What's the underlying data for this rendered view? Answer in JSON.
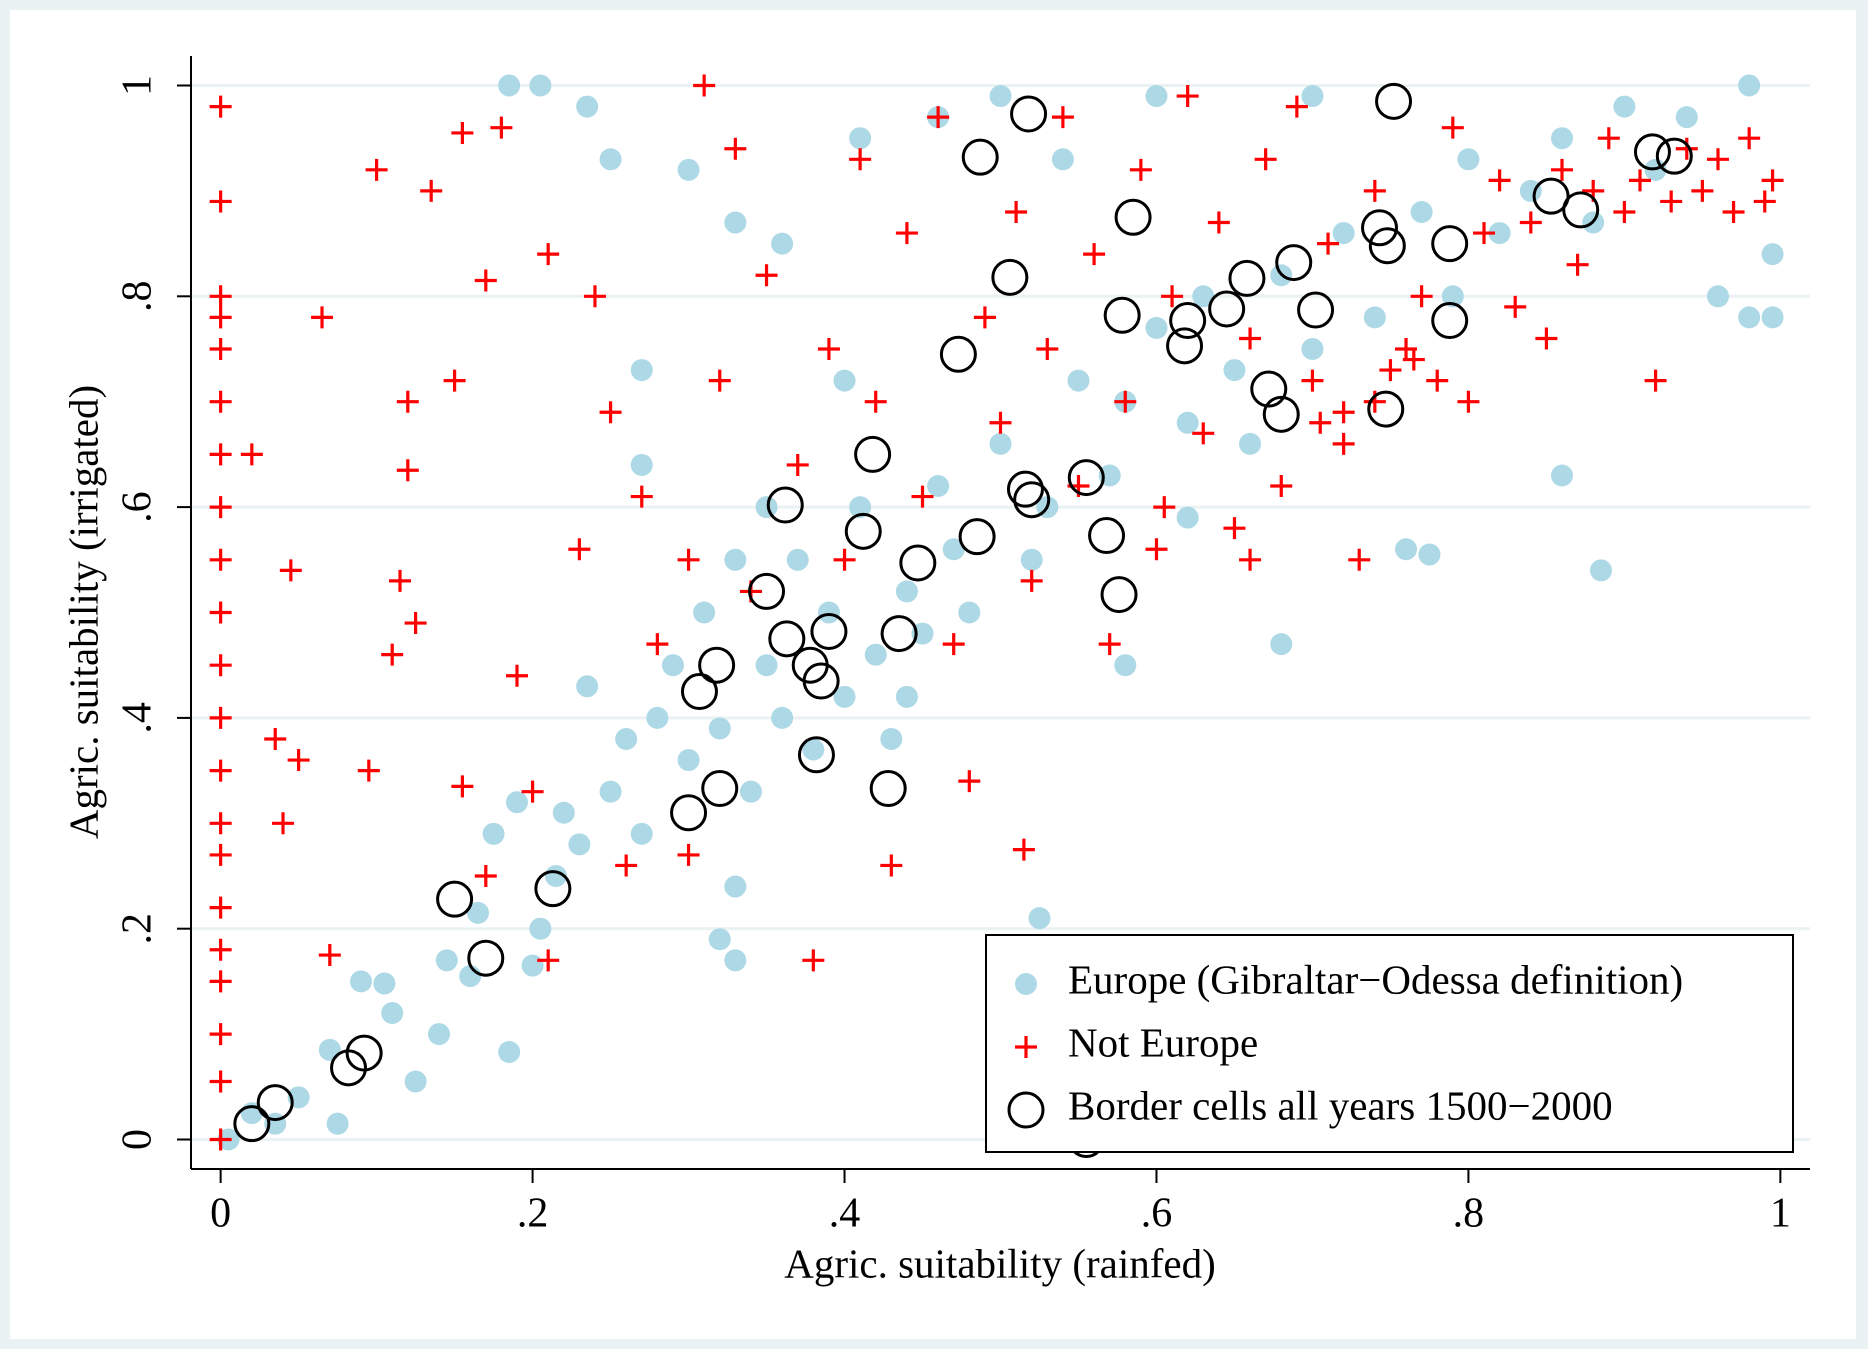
{
  "chart_data": {
    "type": "scatter",
    "x_label": "Agric. suitability (rainfed)",
    "y_label": "Agric. suitability (irrigated)",
    "xlim": [
      -0.019,
      1.019
    ],
    "ylim": [
      -0.028,
      1.028
    ],
    "xticks": [
      0,
      {
        "value": 0.2,
        "label": ".2"
      },
      {
        "value": 0.4,
        "label": ".4"
      },
      {
        "value": 0.6,
        "label": ".6"
      },
      {
        "value": 0.8,
        "label": ".8"
      },
      1
    ],
    "yticks": [
      0,
      {
        "value": 0.2,
        "label": ".2"
      },
      {
        "value": 0.4,
        "label": ".4"
      },
      {
        "value": 0.6,
        "label": ".6"
      },
      {
        "value": 0.8,
        "label": ".8"
      },
      1
    ],
    "grid": true,
    "legend_position": "lower right",
    "series": [
      {
        "name": "Europe (Gibraltar−Odessa definition)",
        "color": "#add8e6",
        "marker": "circle",
        "x": [
          0.005,
          0.02,
          0.035,
          0.05,
          0.075,
          0.07,
          0.09,
          0.11,
          0.105,
          0.125,
          0.14,
          0.145,
          0.16,
          0.165,
          0.175,
          0.185,
          0.19,
          0.2,
          0.205,
          0.215,
          0.22,
          0.23,
          0.235,
          0.25,
          0.26,
          0.27,
          0.28,
          0.29,
          0.3,
          0.31,
          0.32,
          0.33,
          0.33,
          0.34,
          0.35,
          0.36,
          0.37,
          0.38,
          0.39,
          0.4,
          0.41,
          0.42,
          0.43,
          0.44,
          0.45,
          0.46,
          0.47,
          0.48,
          0.5,
          0.52,
          0.53,
          0.55,
          0.57,
          0.58,
          0.6,
          0.62,
          0.63,
          0.65,
          0.66,
          0.68,
          0.7,
          0.72,
          0.74,
          0.76,
          0.77,
          0.79,
          0.8,
          0.82,
          0.84,
          0.86,
          0.88,
          0.9,
          0.92,
          0.94,
          0.96,
          0.98,
          0.995,
          0.185,
          0.205,
          0.235,
          0.3,
          0.33,
          0.41,
          0.46,
          0.5,
          0.54,
          0.6,
          0.7,
          0.775,
          0.86,
          0.885,
          0.98,
          0.995,
          0.525,
          0.68,
          0.62,
          0.27,
          0.36,
          0.25,
          0.4,
          0.58,
          0.44,
          0.35,
          0.33,
          0.32,
          0.27
        ],
        "values": [
          0.0,
          0.025,
          0.015,
          0.04,
          0.015,
          0.085,
          0.15,
          0.12,
          0.148,
          0.055,
          0.1,
          0.17,
          0.155,
          0.215,
          0.29,
          0.083,
          0.32,
          0.165,
          0.2,
          0.25,
          0.31,
          0.28,
          0.43,
          0.33,
          0.38,
          0.29,
          0.4,
          0.45,
          0.36,
          0.5,
          0.39,
          0.17,
          0.55,
          0.33,
          0.45,
          0.4,
          0.55,
          0.37,
          0.5,
          0.42,
          0.6,
          0.46,
          0.38,
          0.52,
          0.48,
          0.62,
          0.56,
          0.5,
          0.66,
          0.55,
          0.6,
          0.72,
          0.63,
          0.7,
          0.77,
          0.68,
          0.8,
          0.73,
          0.66,
          0.82,
          0.75,
          0.86,
          0.78,
          0.56,
          0.88,
          0.8,
          0.93,
          0.86,
          0.9,
          0.95,
          0.87,
          0.98,
          0.92,
          0.97,
          0.8,
          0.78,
          0.84,
          1.0,
          1.0,
          0.98,
          0.92,
          0.87,
          0.95,
          0.97,
          0.99,
          0.93,
          0.99,
          0.99,
          0.555,
          0.63,
          0.54,
          1.0,
          0.78,
          0.21,
          0.47,
          0.59,
          0.73,
          0.85,
          0.93,
          0.72,
          0.45,
          0.42,
          0.6,
          0.24,
          0.19,
          0.64
        ]
      },
      {
        "name": "Not Europe",
        "color": "#ff0000",
        "marker": "plus",
        "x": [
          0,
          0,
          0,
          0,
          0,
          0,
          0,
          0,
          0,
          0,
          0,
          0,
          0,
          0,
          0,
          0,
          0,
          0,
          0,
          0,
          0,
          0.02,
          0.035,
          0.04,
          0.045,
          0.05,
          0.065,
          0.07,
          0.095,
          0.1,
          0.11,
          0.115,
          0.12,
          0.12,
          0.125,
          0.135,
          0.15,
          0.155,
          0.155,
          0.17,
          0.17,
          0.18,
          0.19,
          0.2,
          0.21,
          0.21,
          0.23,
          0.24,
          0.25,
          0.26,
          0.27,
          0.28,
          0.3,
          0.3,
          0.31,
          0.32,
          0.33,
          0.34,
          0.35,
          0.37,
          0.38,
          0.39,
          0.4,
          0.41,
          0.42,
          0.43,
          0.44,
          0.45,
          0.46,
          0.47,
          0.48,
          0.49,
          0.5,
          0.51,
          0.515,
          0.52,
          0.53,
          0.54,
          0.55,
          0.56,
          0.57,
          0.58,
          0.59,
          0.6,
          0.61,
          0.62,
          0.63,
          0.64,
          0.65,
          0.66,
          0.67,
          0.68,
          0.69,
          0.7,
          0.71,
          0.72,
          0.73,
          0.74,
          0.75,
          0.76,
          0.77,
          0.78,
          0.79,
          0.8,
          0.81,
          0.82,
          0.83,
          0.84,
          0.85,
          0.86,
          0.87,
          0.88,
          0.89,
          0.9,
          0.91,
          0.92,
          0.93,
          0.94,
          0.95,
          0.96,
          0.97,
          0.98,
          0.99,
          0.995,
          0.72,
          0.74,
          0.765,
          0.705,
          0.605,
          0.66
        ],
        "values": [
          0.98,
          0.89,
          0.8,
          0.78,
          0.75,
          0.7,
          0.65,
          0.6,
          0.55,
          0.5,
          0.45,
          0.4,
          0.35,
          0.3,
          0.27,
          0.22,
          0.18,
          0.15,
          0.1,
          0.055,
          0.0,
          0.65,
          0.38,
          0.3,
          0.54,
          0.36,
          0.78,
          0.175,
          0.35,
          0.92,
          0.46,
          0.53,
          0.7,
          0.635,
          0.49,
          0.9,
          0.72,
          0.955,
          0.335,
          0.815,
          0.25,
          0.96,
          0.44,
          0.33,
          0.84,
          0.17,
          0.56,
          0.8,
          0.69,
          0.26,
          0.61,
          0.47,
          0.27,
          0.55,
          1.0,
          0.72,
          0.94,
          0.52,
          0.82,
          0.64,
          0.17,
          0.75,
          0.55,
          0.93,
          0.7,
          0.26,
          0.86,
          0.61,
          0.97,
          0.47,
          0.34,
          0.78,
          0.68,
          0.88,
          0.275,
          0.53,
          0.75,
          0.97,
          0.62,
          0.84,
          0.47,
          0.7,
          0.92,
          0.56,
          0.8,
          0.99,
          0.67,
          0.87,
          0.58,
          0.76,
          0.93,
          0.62,
          0.98,
          0.72,
          0.85,
          0.66,
          0.55,
          0.9,
          0.73,
          0.75,
          0.8,
          0.72,
          0.96,
          0.7,
          0.86,
          0.91,
          0.79,
          0.87,
          0.76,
          0.92,
          0.83,
          0.9,
          0.95,
          0.88,
          0.91,
          0.72,
          0.89,
          0.94,
          0.9,
          0.93,
          0.88,
          0.95,
          0.89,
          0.91,
          0.69,
          0.7,
          0.74,
          0.68,
          0.6,
          0.55
        ]
      },
      {
        "name": "Border cells all years 1500−2000",
        "color": "#000000",
        "marker": "hollow-circle",
        "x": [
          0.02,
          0.035,
          0.082,
          0.092,
          0.15,
          0.17,
          0.213,
          0.3,
          0.32,
          0.307,
          0.318,
          0.35,
          0.362,
          0.363,
          0.378,
          0.385,
          0.39,
          0.382,
          0.412,
          0.418,
          0.428,
          0.435,
          0.447,
          0.473,
          0.487,
          0.485,
          0.506,
          0.516,
          0.52,
          0.518,
          0.555,
          0.568,
          0.576,
          0.578,
          0.585,
          0.618,
          0.62,
          0.645,
          0.658,
          0.672,
          0.68,
          0.688,
          0.702,
          0.743,
          0.748,
          0.747,
          0.752,
          0.788,
          0.788,
          0.853,
          0.872,
          0.918,
          0.932,
          0.555
        ],
        "values": [
          0.015,
          0.035,
          0.068,
          0.082,
          0.228,
          0.172,
          0.238,
          0.31,
          0.333,
          0.425,
          0.45,
          0.52,
          0.602,
          0.475,
          0.45,
          0.435,
          0.482,
          0.365,
          0.577,
          0.65,
          0.333,
          0.48,
          0.547,
          0.745,
          0.932,
          0.572,
          0.818,
          0.617,
          0.607,
          0.973,
          0.628,
          0.573,
          0.517,
          0.782,
          0.875,
          0.753,
          0.777,
          0.788,
          0.817,
          0.712,
          0.688,
          0.832,
          0.787,
          0.865,
          0.848,
          0.693,
          0.985,
          0.85,
          0.777,
          0.895,
          0.882,
          0.937,
          0.933,
          0.0
        ]
      }
    ]
  }
}
